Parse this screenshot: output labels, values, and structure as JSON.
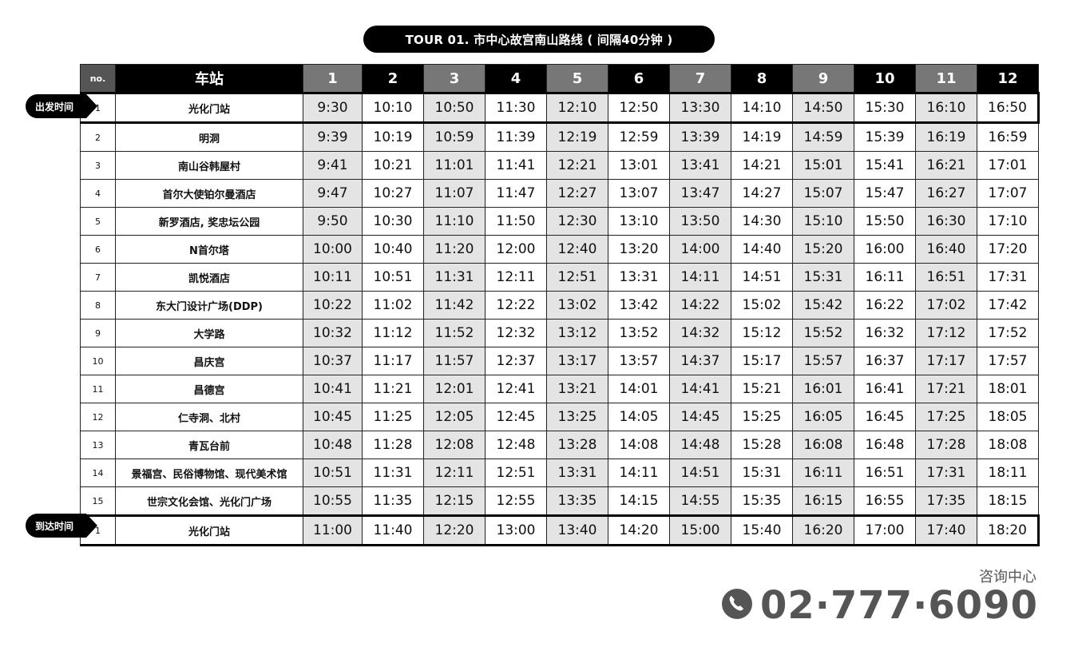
{
  "title": "TOUR 01. 市中心故宫南山路线 ( 间隔40分钟 )",
  "header": {
    "no_label": "no.",
    "station_label": "车站",
    "trips": [
      "1",
      "2",
      "3",
      "4",
      "5",
      "6",
      "7",
      "8",
      "9",
      "10",
      "11",
      "12"
    ]
  },
  "departure_label": "出发时间",
  "arrival_label": "到达时间",
  "rows": [
    {
      "no": "1",
      "station": "光化门站",
      "times": [
        "9:30",
        "10:10",
        "10:50",
        "11:30",
        "12:10",
        "12:50",
        "13:30",
        "14:10",
        "14:50",
        "15:30",
        "16:10",
        "16:50"
      ]
    },
    {
      "no": "2",
      "station": "明洞",
      "times": [
        "9:39",
        "10:19",
        "10:59",
        "11:39",
        "12:19",
        "12:59",
        "13:39",
        "14:19",
        "14:59",
        "15:39",
        "16:19",
        "16:59"
      ]
    },
    {
      "no": "3",
      "station": "南山谷韩屋村",
      "times": [
        "9:41",
        "10:21",
        "11:01",
        "11:41",
        "12:21",
        "13:01",
        "13:41",
        "14:21",
        "15:01",
        "15:41",
        "16:21",
        "17:01"
      ]
    },
    {
      "no": "4",
      "station": "首尔大使铂尔曼酒店",
      "times": [
        "9:47",
        "10:27",
        "11:07",
        "11:47",
        "12:27",
        "13:07",
        "13:47",
        "14:27",
        "15:07",
        "15:47",
        "16:27",
        "17:07"
      ]
    },
    {
      "no": "5",
      "station": "新罗酒店, 奖忠坛公园",
      "times": [
        "9:50",
        "10:30",
        "11:10",
        "11:50",
        "12:30",
        "13:10",
        "13:50",
        "14:30",
        "15:10",
        "15:50",
        "16:30",
        "17:10"
      ]
    },
    {
      "no": "6",
      "station": "N首尔塔",
      "times": [
        "10:00",
        "10:40",
        "11:20",
        "12:00",
        "12:40",
        "13:20",
        "14:00",
        "14:40",
        "15:20",
        "16:00",
        "16:40",
        "17:20"
      ]
    },
    {
      "no": "7",
      "station": "凯悦酒店",
      "times": [
        "10:11",
        "10:51",
        "11:31",
        "12:11",
        "12:51",
        "13:31",
        "14:11",
        "14:51",
        "15:31",
        "16:11",
        "16:51",
        "17:31"
      ]
    },
    {
      "no": "8",
      "station": "东大门设计广场(DDP)",
      "times": [
        "10:22",
        "11:02",
        "11:42",
        "12:22",
        "13:02",
        "13:42",
        "14:22",
        "15:02",
        "15:42",
        "16:22",
        "17:02",
        "17:42"
      ]
    },
    {
      "no": "9",
      "station": "大学路",
      "times": [
        "10:32",
        "11:12",
        "11:52",
        "12:32",
        "13:12",
        "13:52",
        "14:32",
        "15:12",
        "15:52",
        "16:32",
        "17:12",
        "17:52"
      ]
    },
    {
      "no": "10",
      "station": "昌庆宫",
      "times": [
        "10:37",
        "11:17",
        "11:57",
        "12:37",
        "13:17",
        "13:57",
        "14:37",
        "15:17",
        "15:57",
        "16:37",
        "17:17",
        "17:57"
      ]
    },
    {
      "no": "11",
      "station": "昌德宫",
      "times": [
        "10:41",
        "11:21",
        "12:01",
        "12:41",
        "13:21",
        "14:01",
        "14:41",
        "15:21",
        "16:01",
        "16:41",
        "17:21",
        "18:01"
      ]
    },
    {
      "no": "12",
      "station": "仁寺洞、北村",
      "times": [
        "10:45",
        "11:25",
        "12:05",
        "12:45",
        "13:25",
        "14:05",
        "14:45",
        "15:25",
        "16:05",
        "16:45",
        "17:25",
        "18:05"
      ]
    },
    {
      "no": "13",
      "station": "青瓦台前",
      "times": [
        "10:48",
        "11:28",
        "12:08",
        "12:48",
        "13:28",
        "14:08",
        "14:48",
        "15:28",
        "16:08",
        "16:48",
        "17:28",
        "18:08"
      ]
    },
    {
      "no": "14",
      "station": "景福宫、民俗博物馆、现代美术馆",
      "times": [
        "10:51",
        "11:31",
        "12:11",
        "12:51",
        "13:31",
        "14:11",
        "14:51",
        "15:31",
        "16:11",
        "16:51",
        "17:31",
        "18:11"
      ]
    },
    {
      "no": "15",
      "station": "世宗文化会馆、光化门广场",
      "times": [
        "10:55",
        "11:35",
        "12:15",
        "12:55",
        "13:35",
        "14:15",
        "14:55",
        "15:35",
        "16:15",
        "16:55",
        "17:35",
        "18:15"
      ]
    },
    {
      "no": "1",
      "station": "光化门站",
      "times": [
        "11:00",
        "11:40",
        "12:20",
        "13:00",
        "13:40",
        "14:20",
        "15:00",
        "15:40",
        "16:20",
        "17:00",
        "17:40",
        "18:20"
      ]
    }
  ],
  "contact": {
    "label": "咨询中心",
    "icon": "phone-icon",
    "number": "02·777·6090"
  }
}
